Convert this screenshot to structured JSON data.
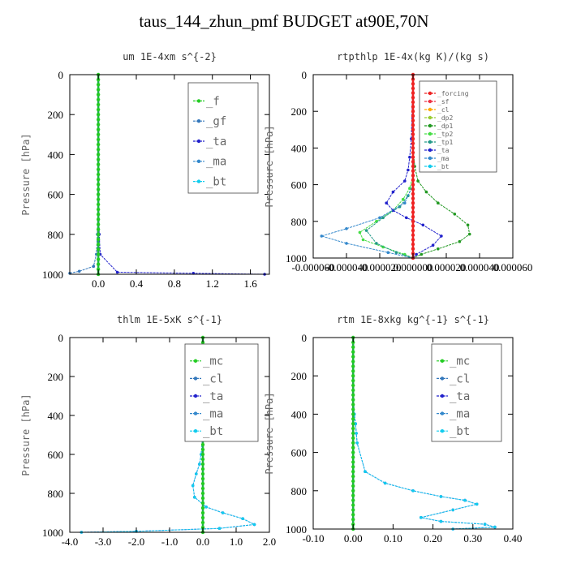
{
  "title": "taus_144_zhun_pmf  BUDGET at90E,70N",
  "colors": {
    "f": "#22cc22",
    "gf": "#3377bb",
    "ta": "#2222cc",
    "ma": "#3388cc",
    "bt": "#11ccee",
    "forcing": "#ee2222",
    "sf": "#ee3344",
    "cl": "#ffaa00",
    "dp2": "#99cc33",
    "dp1": "#229922",
    "tp2": "#44dd44",
    "tp1": "#229988",
    "mc": "#22cc22",
    "cl2": "#3377bb",
    "axis": "#000000",
    "zero": "#22aa55"
  },
  "chart_data": [
    {
      "type": "line",
      "title": "um  1E-4xm s^{-2}",
      "ylabel": "Pressure [hPa]",
      "xlim": [
        -0.3,
        1.8
      ],
      "ylim": [
        1000,
        0
      ],
      "xticks": [
        "0.0",
        "0.4",
        "0.8",
        "1.2",
        "1.6"
      ],
      "xtick_values": [
        0,
        0.4,
        0.8,
        1.2,
        1.6
      ],
      "yticks": [
        "0",
        "200",
        "400",
        "600",
        "800",
        "1000"
      ],
      "ytick_values": [
        0,
        200,
        400,
        600,
        800,
        1000
      ],
      "legend": [
        "_f",
        "_gf",
        "_ta",
        "_ma",
        "_bt"
      ],
      "legend_size": "large",
      "series": [
        {
          "name": "_f",
          "color": "f",
          "x": [
            0,
            0,
            0,
            0,
            0,
            0,
            0,
            0,
            0,
            0,
            0
          ],
          "y": [
            0,
            100,
            200,
            300,
            400,
            500,
            600,
            700,
            800,
            900,
            1000
          ]
        },
        {
          "name": "_gf",
          "color": "gf",
          "x": [
            0,
            0,
            0,
            0,
            -0.01,
            -0.02,
            -0.05,
            -0.2,
            -0.3
          ],
          "y": [
            0,
            200,
            400,
            600,
            800,
            900,
            960,
            985,
            995
          ]
        },
        {
          "name": "_ta",
          "color": "ta",
          "x": [
            0,
            0,
            0,
            0,
            0.01,
            0.02,
            0.2,
            1.0,
            1.75
          ],
          "y": [
            0,
            200,
            400,
            600,
            800,
            900,
            990,
            995,
            1000
          ]
        },
        {
          "name": "_ma",
          "color": "ma",
          "x": [
            0,
            0,
            0,
            0,
            0,
            0,
            0
          ],
          "y": [
            0,
            200,
            400,
            600,
            800,
            900,
            1000
          ]
        },
        {
          "name": "_bt",
          "color": "bt",
          "x": [
            0,
            0,
            0,
            0,
            0,
            0,
            0
          ],
          "y": [
            0,
            200,
            400,
            600,
            800,
            900,
            1000
          ]
        }
      ]
    },
    {
      "type": "line",
      "title": "rtpthlp  1E-4x(kg K)/(kg s)",
      "ylabel": "Pressure [hPa]",
      "xlim": [
        -6e-05,
        6e-05
      ],
      "ylim": [
        1000,
        0
      ],
      "xticks": [
        "-0.000060",
        "-0.000040",
        "-0.000020",
        "0.000000",
        "0.000020",
        "0.000040",
        "0.000060"
      ],
      "xtick_values": [
        -6e-05,
        -4e-05,
        -2e-05,
        0,
        2e-05,
        4e-05,
        6e-05
      ],
      "yticks": [
        "0",
        "200",
        "400",
        "600",
        "800",
        "1000"
      ],
      "ytick_values": [
        0,
        200,
        400,
        600,
        800,
        1000
      ],
      "legend": [
        "_forcing",
        "_sf",
        "_cl",
        "_dp2",
        "_dp1",
        "_tp2",
        "_tp1",
        "_ta",
        "_ma",
        "_bt"
      ],
      "legend_size": "small",
      "series": [
        {
          "name": "_forcing",
          "color": "forcing",
          "x": [
            0,
            0,
            0,
            0,
            0,
            0,
            0,
            0,
            0,
            0,
            0,
            0,
            0,
            0,
            0,
            0,
            0,
            0,
            0,
            0,
            0
          ],
          "y": [
            0,
            50,
            100,
            150,
            200,
            250,
            300,
            350,
            400,
            450,
            500,
            550,
            600,
            650,
            700,
            750,
            800,
            850,
            900,
            950,
            1000
          ]
        },
        {
          "name": "_sf",
          "color": "sf",
          "x": [
            0,
            0,
            0
          ],
          "y": [
            0,
            500,
            1000
          ]
        },
        {
          "name": "_cl",
          "color": "cl",
          "x": [
            0,
            0,
            0
          ],
          "y": [
            0,
            500,
            1000
          ]
        },
        {
          "name": "_dp2",
          "color": "dp2",
          "x": [
            0,
            0,
            0
          ],
          "y": [
            0,
            500,
            1000
          ]
        },
        {
          "name": "_dp1",
          "color": "dp1",
          "x": [
            0,
            0,
            1e-06,
            3e-06,
            8e-06,
            1.5e-05,
            2.5e-05,
            3.3e-05,
            3.4e-05,
            2.8e-05,
            1.5e-05,
            5e-06,
            0
          ],
          "y": [
            0,
            400,
            500,
            580,
            640,
            700,
            760,
            820,
            870,
            910,
            950,
            980,
            1000
          ]
        },
        {
          "name": "_tp2",
          "color": "tp2",
          "x": [
            0,
            0,
            0,
            -2e-06,
            -6e-06,
            -1.2e-05,
            -2.2e-05,
            -3.2e-05,
            -3e-05,
            -1.8e-05,
            -5e-06,
            0
          ],
          "y": [
            0,
            400,
            550,
            620,
            680,
            740,
            800,
            860,
            900,
            940,
            980,
            1000
          ]
        },
        {
          "name": "_tp1",
          "color": "tp1",
          "x": [
            0,
            0,
            0,
            -3e-06,
            -8e-06,
            -1.8e-05,
            -2.8e-05,
            -2.2e-05,
            -1e-05,
            0
          ],
          "y": [
            0,
            500,
            600,
            660,
            720,
            780,
            850,
            920,
            970,
            1000
          ]
        },
        {
          "name": "_ta",
          "color": "ta",
          "x": [
            0,
            -1e-06,
            -2e-06,
            -3e-06,
            -5e-06,
            -1.2e-05,
            -1.6e-05,
            -1.2e-05,
            -4e-06,
            6e-06,
            1.7e-05,
            1.2e-05,
            2e-06,
            0
          ],
          "y": [
            0,
            350,
            450,
            520,
            580,
            640,
            700,
            740,
            780,
            820,
            880,
            930,
            980,
            1000
          ]
        },
        {
          "name": "_ma",
          "color": "ma",
          "x": [
            0,
            0,
            -5e-06,
            -2e-05,
            -4e-05,
            -5.5e-05,
            -4e-05,
            -1.5e-05,
            0
          ],
          "y": [
            0,
            600,
            700,
            780,
            840,
            880,
            920,
            970,
            1000
          ]
        },
        {
          "name": "_bt",
          "color": "bt",
          "x": [
            0,
            0,
            0
          ],
          "y": [
            0,
            500,
            1000
          ]
        }
      ]
    },
    {
      "type": "line",
      "title": "thlm  1E-5xK s^{-1}",
      "ylabel": "Pressure [hPa]",
      "xlim": [
        -4.0,
        2.0
      ],
      "ylim": [
        1000,
        0
      ],
      "xticks": [
        "-4.0",
        "-3.0",
        "-2.0",
        "-1.0",
        "0.0",
        "1.0",
        "2.0"
      ],
      "xtick_values": [
        -4,
        -3,
        -2,
        -1,
        0,
        1,
        2
      ],
      "yticks": [
        "0",
        "200",
        "400",
        "600",
        "800",
        "1000"
      ],
      "ytick_values": [
        0,
        200,
        400,
        600,
        800,
        1000
      ],
      "legend": [
        "_mc",
        "_cl",
        "_ta",
        "_ma",
        "_bt"
      ],
      "legend_size": "large",
      "series": [
        {
          "name": "_mc",
          "color": "mc",
          "x": [
            0,
            0,
            0,
            0,
            0,
            0,
            0,
            0,
            0,
            0,
            0
          ],
          "y": [
            0,
            100,
            200,
            300,
            400,
            500,
            600,
            700,
            800,
            900,
            1000
          ]
        },
        {
          "name": "_cl",
          "color": "cl2",
          "x": [
            0,
            0,
            0
          ],
          "y": [
            0,
            500,
            1000
          ]
        },
        {
          "name": "_ta",
          "color": "ta",
          "x": [
            0,
            0,
            -0.05,
            -0.1,
            -0.2,
            -0.3,
            -0.25,
            0.1,
            0.6,
            1.2,
            1.55,
            0.5,
            -2.0,
            -3.65
          ],
          "y": [
            0,
            500,
            600,
            650,
            700,
            760,
            820,
            870,
            900,
            930,
            960,
            980,
            995,
            1000
          ]
        },
        {
          "name": "_ma",
          "color": "ma",
          "x": [
            0,
            0,
            0
          ],
          "y": [
            0,
            500,
            1000
          ]
        },
        {
          "name": "_bt",
          "color": "bt",
          "x": [
            0,
            0,
            -0.05,
            -0.1,
            -0.2,
            -0.3,
            -0.25,
            0.1,
            0.6,
            1.2,
            1.55,
            0.5,
            -2.0,
            -3.65
          ],
          "y": [
            0,
            500,
            600,
            650,
            700,
            760,
            820,
            870,
            900,
            930,
            960,
            980,
            995,
            1000
          ]
        }
      ]
    },
    {
      "type": "line",
      "title": "rtm  1E-8xkg kg^{-1} s^{-1}",
      "ylabel": "Pressure [hPa]",
      "xlim": [
        -0.1,
        0.4
      ],
      "ylim": [
        1000,
        0
      ],
      "xticks": [
        "-0.10",
        "0.00",
        "0.10",
        "0.20",
        "0.30",
        "0.40"
      ],
      "xtick_values": [
        -0.1,
        0,
        0.1,
        0.2,
        0.3,
        0.4
      ],
      "yticks": [
        "0",
        "200",
        "400",
        "600",
        "800",
        "1000"
      ],
      "ytick_values": [
        0,
        200,
        400,
        600,
        800,
        1000
      ],
      "legend": [
        "_mc",
        "_cl",
        "_ta",
        "_ma",
        "_bt"
      ],
      "legend_size": "large",
      "series": [
        {
          "name": "_mc",
          "color": "mc",
          "x": [
            0,
            0,
            0,
            0,
            0,
            0,
            0,
            0,
            0,
            0,
            0
          ],
          "y": [
            0,
            100,
            200,
            300,
            400,
            500,
            600,
            700,
            800,
            900,
            1000
          ]
        },
        {
          "name": "_cl",
          "color": "cl2",
          "x": [
            0,
            0,
            0
          ],
          "y": [
            0,
            500,
            1000
          ]
        },
        {
          "name": "_ta",
          "color": "ta",
          "x": [
            0,
            0,
            0.003,
            0.006,
            0.008,
            0.01,
            0.03,
            0.08,
            0.15,
            0.22,
            0.28,
            0.31,
            0.25,
            0.17,
            0.22,
            0.33,
            0.355,
            0.25
          ],
          "y": [
            0,
            300,
            400,
            450,
            500,
            550,
            700,
            760,
            800,
            830,
            850,
            870,
            900,
            940,
            960,
            975,
            990,
            1000
          ]
        },
        {
          "name": "_ma",
          "color": "ma",
          "x": [
            0,
            0,
            0
          ],
          "y": [
            0,
            500,
            1000
          ]
        },
        {
          "name": "_bt",
          "color": "bt",
          "x": [
            0,
            0,
            0.003,
            0.006,
            0.008,
            0.01,
            0.03,
            0.08,
            0.15,
            0.22,
            0.28,
            0.31,
            0.25,
            0.17,
            0.22,
            0.33,
            0.355,
            0.25
          ],
          "y": [
            0,
            300,
            400,
            450,
            500,
            550,
            700,
            760,
            800,
            830,
            850,
            870,
            900,
            940,
            960,
            975,
            990,
            1000
          ]
        }
      ]
    }
  ]
}
